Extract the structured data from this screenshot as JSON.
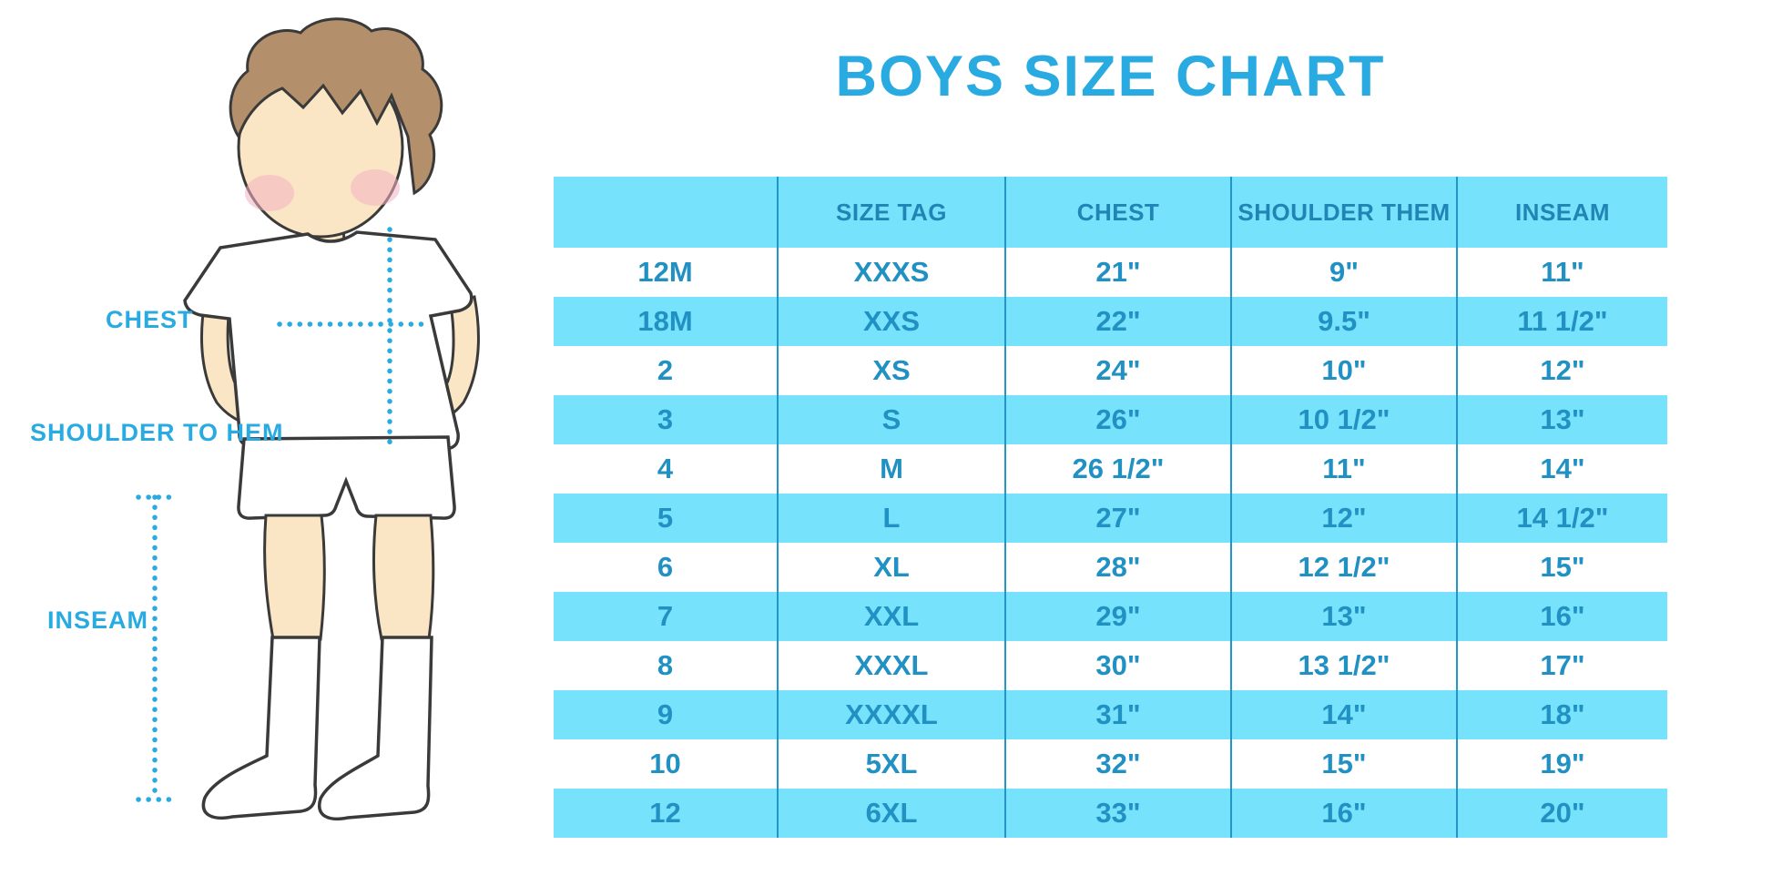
{
  "title": "BOYS SIZE CHART",
  "colors": {
    "title_blue": "#29ABE2",
    "label_blue": "#29ABE2",
    "band_cyan": "#76E2FB",
    "header_text": "#1F85B5",
    "cell_text": "#2191C4",
    "divider": "#2196CC",
    "skin": "#FAE6C4",
    "hair_brown": "#B3906B",
    "blush_pink": "#F2B3C3",
    "outline": "#3A3A3A"
  },
  "measurement_labels": {
    "chest": "CHEST",
    "shoulder_to_hem": "SHOULDER TO HEM",
    "inseam": "INSEAM"
  },
  "chart_data": {
    "type": "table",
    "title": "BOYS SIZE CHART",
    "columns": [
      "",
      "SIZE TAG",
      "CHEST",
      "SHOULDER THEM",
      "INSEAM"
    ],
    "rows": [
      [
        "12M",
        "XXXS",
        "21\"",
        "9\"",
        "11\""
      ],
      [
        "18M",
        "XXS",
        "22\"",
        "9.5\"",
        "11 1/2\""
      ],
      [
        "2",
        "XS",
        "24\"",
        "10\"",
        "12\""
      ],
      [
        "3",
        "S",
        "26\"",
        "10 1/2\"",
        "13\""
      ],
      [
        "4",
        "M",
        "26 1/2\"",
        "11\"",
        "14\""
      ],
      [
        "5",
        "L",
        "27\"",
        "12\"",
        "14 1/2\""
      ],
      [
        "6",
        "XL",
        "28\"",
        "12 1/2\"",
        "15\""
      ],
      [
        "7",
        "XXL",
        "29\"",
        "13\"",
        "16\""
      ],
      [
        "8",
        "XXXL",
        "30\"",
        "13 1/2\"",
        "17\""
      ],
      [
        "9",
        "XXXXL",
        "31\"",
        "14\"",
        "18\""
      ],
      [
        "10",
        "5XL",
        "32\"",
        "15\"",
        "19\""
      ],
      [
        "12",
        "6XL",
        "33\"",
        "16\"",
        "20\""
      ]
    ],
    "striping": "header and alternate rows cyan, others white",
    "legend_position": "none",
    "grid": "vertical column dividers only"
  }
}
